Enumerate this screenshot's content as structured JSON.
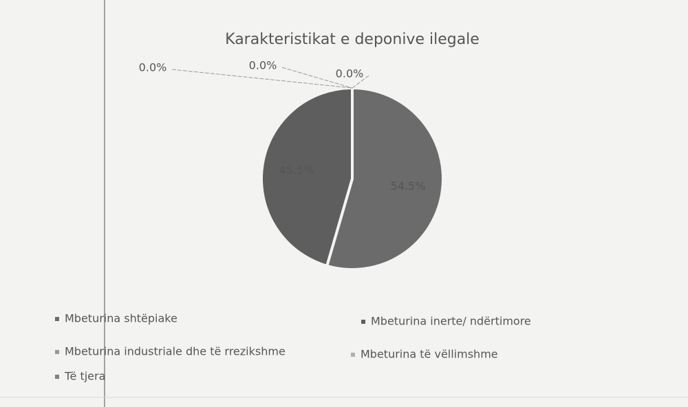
{
  "chart_data": {
    "type": "pie",
    "title": "Karakteristikat e deponive ilegale",
    "categories": [
      "Mbeturina shtëpiake",
      "Mbeturina inerte/ ndërtimore",
      "Mbeturina industriale dhe të rrezikshme",
      "Mbeturina të vëllimshme",
      "Të tjera"
    ],
    "values": [
      54.5,
      45.5,
      0,
      0,
      0
    ],
    "value_labels": [
      "54.5%",
      "45.5%",
      "0.0%",
      "0.0%",
      "0.0%"
    ],
    "colors": [
      "#6b6b6b",
      "#5e5e5e",
      "#9a9a9a",
      "#b0b0b0",
      "#808080"
    ]
  }
}
